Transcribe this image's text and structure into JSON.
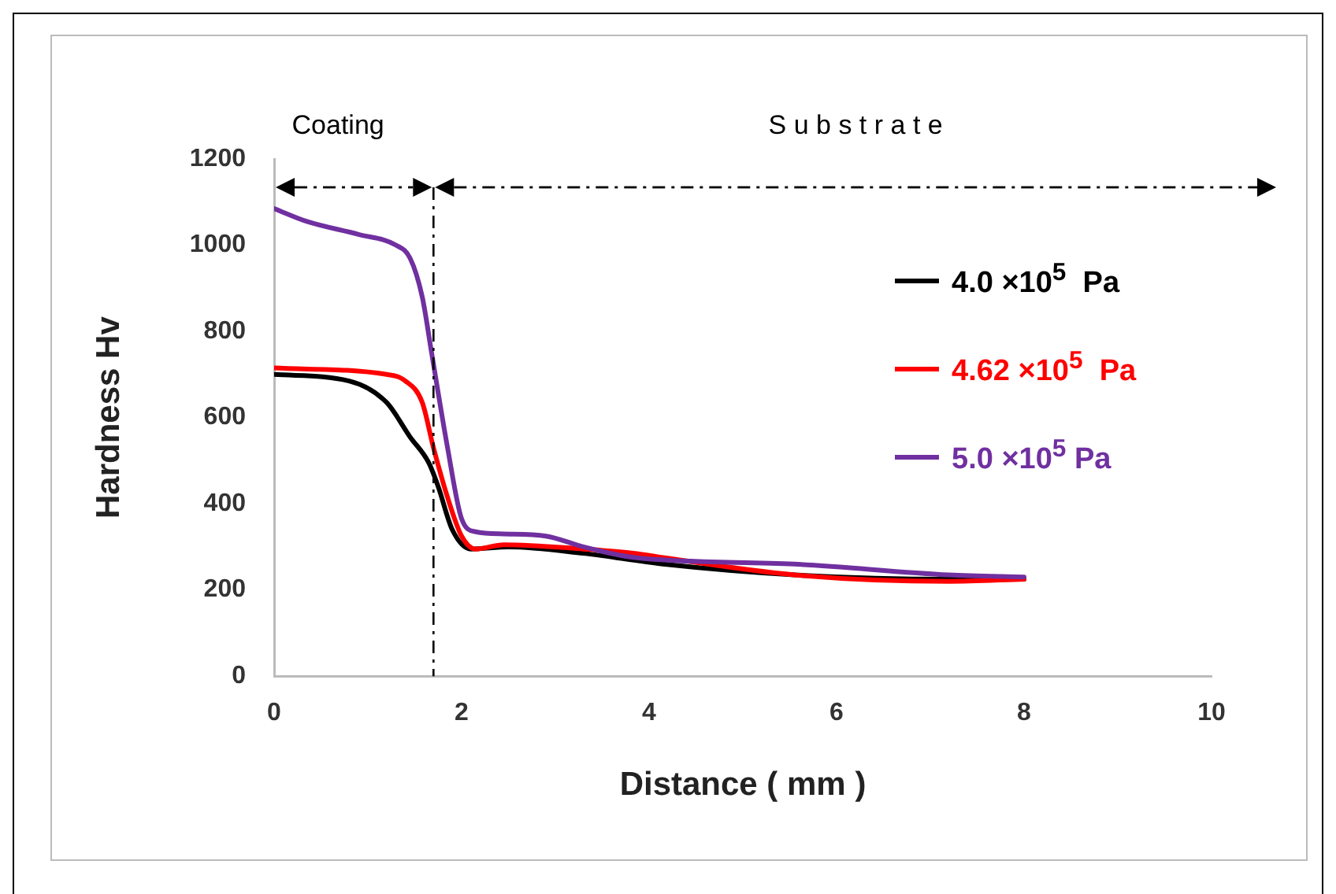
{
  "chart_data": {
    "type": "line",
    "xlabel": "Distance ( mm )",
    "ylabel": "Hardness Hv",
    "xlim": [
      0,
      10
    ],
    "xticks": [
      0,
      2,
      4,
      6,
      8,
      10
    ],
    "ylim": [
      0,
      1200
    ],
    "yticks": [
      0,
      200,
      400,
      600,
      800,
      1000,
      1200
    ],
    "grid": false,
    "legend": "right",
    "marker": "none",
    "line_style": "solid",
    "annotations": [
      "Coating",
      "S u b s t r a t e"
    ],
    "ref_lines": [
      {
        "axis": "x",
        "value": 1.7,
        "color": "#000000",
        "line_style": "dashed"
      }
    ],
    "series": [
      {
        "name": "4.0 ×10$^{5}$  Pa",
        "color": "#000000",
        "x": [
          0,
          0.8,
          1.2,
          1.45,
          1.65,
          1.75,
          1.9,
          2.1,
          2.5,
          3.3,
          4.15,
          5.55,
          7.2,
          8
        ],
        "values": [
          700,
          685,
          635,
          555,
          495,
          440,
          340,
          295,
          300,
          285,
          260,
          235,
          225,
          225
        ]
      },
      {
        "name": "4.62 ×10$^{5}$  Pa",
        "color": "#ff0000",
        "x": [
          0,
          1.2,
          1.4,
          1.58,
          1.7,
          1.85,
          2,
          2.15,
          2.45,
          3.3,
          3.85,
          4.15,
          5.55,
          7.2,
          8
        ],
        "values": [
          715,
          700,
          685,
          635,
          530,
          415,
          325,
          295,
          305,
          295,
          285,
          275,
          235,
          220,
          225
        ]
      },
      {
        "name": "5.0 ×10$^{5}$ Pa",
        "color": "#7030a0",
        "x": [
          0,
          0.35,
          0.9,
          1.3,
          1.45,
          1.58,
          1.68,
          1.85,
          2,
          2.15,
          2.45,
          2.9,
          3.3,
          3.85,
          5.55,
          7.2,
          8
        ],
        "values": [
          1085,
          1055,
          1025,
          1000,
          970,
          880,
          750,
          530,
          365,
          335,
          330,
          325,
          300,
          275,
          260,
          235,
          230
        ]
      }
    ]
  }
}
